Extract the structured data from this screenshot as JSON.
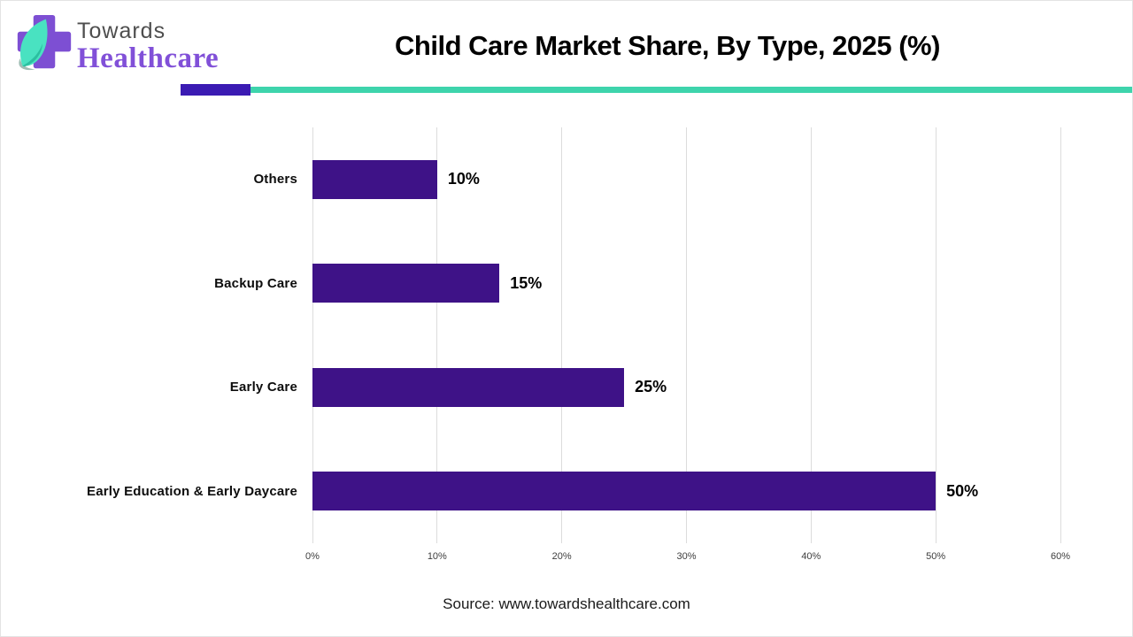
{
  "header": {
    "logo_line1": "Towards",
    "logo_line2": "Healthcare",
    "title": "Child Care Market Share, By Type, 2025 (%)",
    "accent_purple": "#3b1bb3",
    "accent_teal": "#3ed4ac"
  },
  "chart_data": {
    "type": "bar",
    "orientation": "horizontal",
    "title": "Child Care Market Share, By Type, 2025 (%)",
    "categories": [
      "Others",
      "Backup Care",
      "Early Care",
      "Early Education & Early Daycare"
    ],
    "values": [
      10,
      15,
      25,
      50
    ],
    "value_labels": [
      "10%",
      "15%",
      "25%",
      "50%"
    ],
    "x_ticks": [
      "0%",
      "10%",
      "20%",
      "30%",
      "40%",
      "50%",
      "60%"
    ],
    "xlim": [
      0,
      60
    ],
    "bar_color": "#3e1287",
    "grid": true,
    "legend": "none"
  },
  "footer": {
    "source": "Source: www.towardshealthcare.com"
  }
}
